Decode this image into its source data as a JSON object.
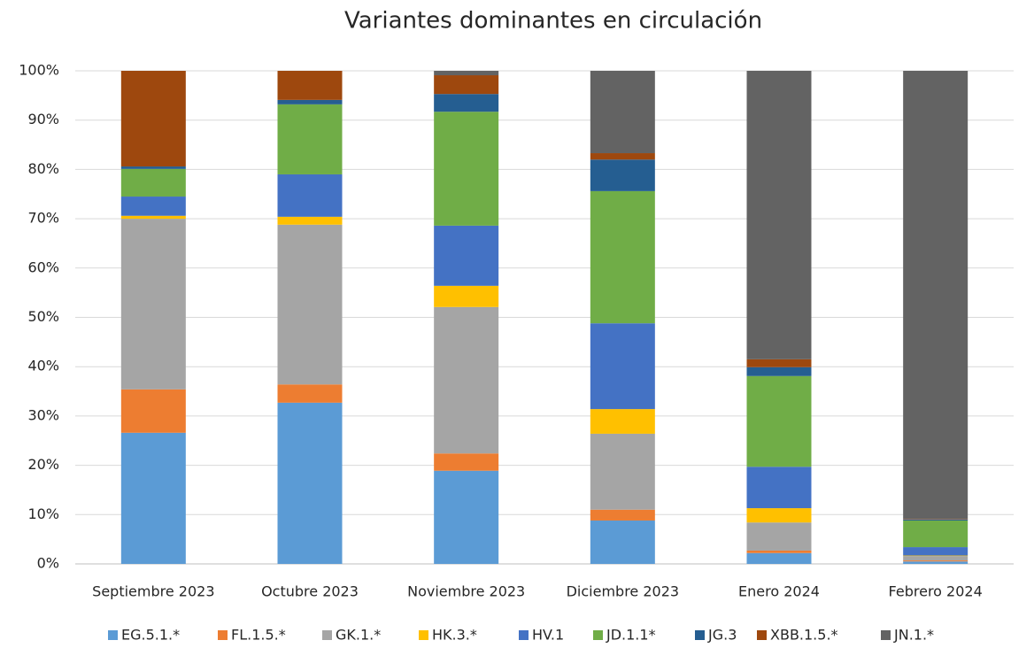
{
  "chart_data": {
    "type": "stacked_bar",
    "title": "Variantes dominantes en circulación",
    "categories": [
      "Septiembre 2023",
      "Octubre 2023",
      "Noviembre 2023",
      "Diciembre 2023",
      "Enero 2024",
      "Febrero 2024"
    ],
    "series": [
      {
        "name": "EG.5.1.*",
        "color": "#5b9bd5",
        "values": [
          26.6,
          32.7,
          18.9,
          8.8,
          2.2,
          0.5
        ]
      },
      {
        "name": "FL.1.5.*",
        "color": "#ed7d31",
        "values": [
          8.8,
          3.7,
          3.5,
          2.2,
          0.5,
          0.2
        ]
      },
      {
        "name": "GK.1.*",
        "color": "#a5a5a5",
        "values": [
          34.6,
          32.4,
          29.7,
          15.4,
          5.7,
          0.9
        ]
      },
      {
        "name": "HK.3.*",
        "color": "#ffc000",
        "values": [
          0.6,
          1.6,
          4.3,
          5.0,
          2.9,
          0.1
        ]
      },
      {
        "name": "HV.1",
        "color": "#4472c4",
        "values": [
          3.9,
          8.6,
          12.2,
          17.4,
          8.4,
          1.7
        ]
      },
      {
        "name": "JD.1.1*",
        "color": "#70ad47",
        "values": [
          5.6,
          14.2,
          23.1,
          26.8,
          18.4,
          5.4
        ]
      },
      {
        "name": "JG.3",
        "color": "#255e91",
        "values": [
          0.5,
          0.9,
          3.6,
          6.4,
          1.8,
          0.2
        ]
      },
      {
        "name": "XBB.1.5.*",
        "color": "#9e480e",
        "values": [
          19.4,
          5.9,
          3.8,
          1.3,
          1.6,
          0.1
        ]
      },
      {
        "name": "JN.1.*",
        "color": "#636363",
        "values": [
          0,
          0,
          0.9,
          16.7,
          58.5,
          90.9
        ]
      }
    ],
    "ylim": [
      0,
      100
    ],
    "yticks": [
      {
        "value": 0,
        "label": "0%"
      },
      {
        "value": 10,
        "label": "10%"
      },
      {
        "value": 20,
        "label": "20%"
      },
      {
        "value": 30,
        "label": "30%"
      },
      {
        "value": 40,
        "label": "40%"
      },
      {
        "value": 50,
        "label": "50%"
      },
      {
        "value": 60,
        "label": "60%"
      },
      {
        "value": 70,
        "label": "70%"
      },
      {
        "value": 80,
        "label": "80%"
      },
      {
        "value": 90,
        "label": "90%"
      },
      {
        "value": 100,
        "label": "100%"
      }
    ],
    "grid": true,
    "legend": "bottom"
  }
}
